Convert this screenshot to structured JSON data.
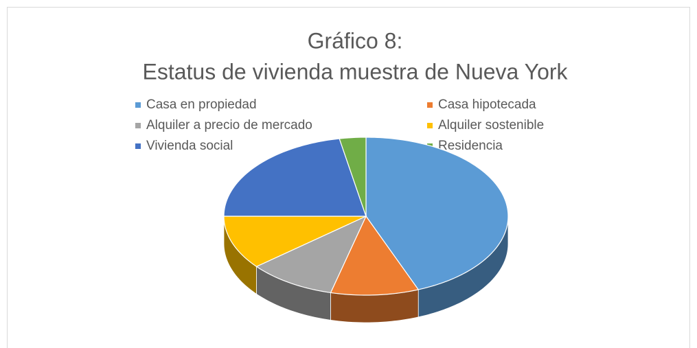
{
  "chart_data": {
    "type": "pie",
    "title": [
      "Gráfico 8:",
      "Estatus de vivienda muestra de Nueva York"
    ],
    "categories": [
      "Casa en propiedad",
      "Casa hipotecada",
      "Alquiler a precio de mercado",
      "Alquiler sostenible",
      "Vivienda social",
      "Residencia"
    ],
    "values": [
      44,
      10,
      10,
      11,
      22,
      3
    ],
    "colors": [
      "#5b9bd5",
      "#ed7d31",
      "#a5a5a5",
      "#ffc000",
      "#4472c4",
      "#70ad47"
    ],
    "legend": "top"
  }
}
